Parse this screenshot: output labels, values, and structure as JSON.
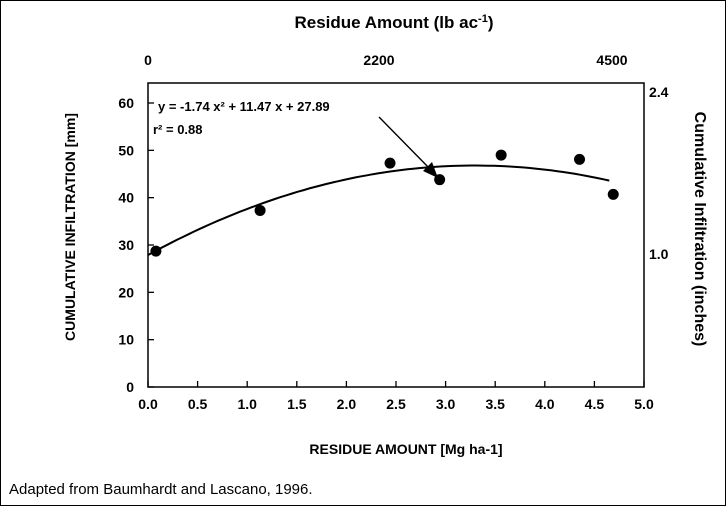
{
  "chart_data": {
    "type": "scatter",
    "top_axis_title": "Residue Amount (lb ac",
    "top_axis_title_sup": "-1",
    "top_axis_title_end": ")",
    "top_tick_labels": [
      "0",
      "2200",
      "4500"
    ],
    "top_tick_values_mg_ha": [
      0.0,
      2.47,
      5.04
    ],
    "xlabel": "RESIDUE AMOUNT [Mg ha-1]",
    "ylabel": "CUMULATIVE INFILTRATION [mm]",
    "right_ylabel": "Cumulative Infiltration (inches)",
    "right_tick_labels": [
      "2.4",
      "1.0"
    ],
    "right_tick_values_mm": [
      61,
      25.4
    ],
    "xlim": [
      0.0,
      5.0
    ],
    "ylim": [
      0,
      60
    ],
    "x_ticks": [
      "0.0",
      "0.5",
      "1.0",
      "1.5",
      "2.0",
      "2.5",
      "3.0",
      "3.5",
      "4.0",
      "4.5",
      "5.0"
    ],
    "y_ticks": [
      "0",
      "10",
      "20",
      "30",
      "40",
      "50",
      "60"
    ],
    "points": {
      "x": [
        0.08,
        1.13,
        2.44,
        2.94,
        3.56,
        4.35,
        4.69
      ],
      "y": [
        28.7,
        37.3,
        47.3,
        43.8,
        49.0,
        48.1,
        40.7
      ]
    },
    "fit": {
      "a": -1.74,
      "b": 11.47,
      "c": 27.89,
      "x_range": [
        0.0,
        4.65
      ]
    },
    "equation": "y = -1.74 x² + 11.47 x + 27.89",
    "r2_label": "r² = 0.88",
    "grid": false
  },
  "caption": "Adapted from Baumhardt and Lascano, 1996."
}
